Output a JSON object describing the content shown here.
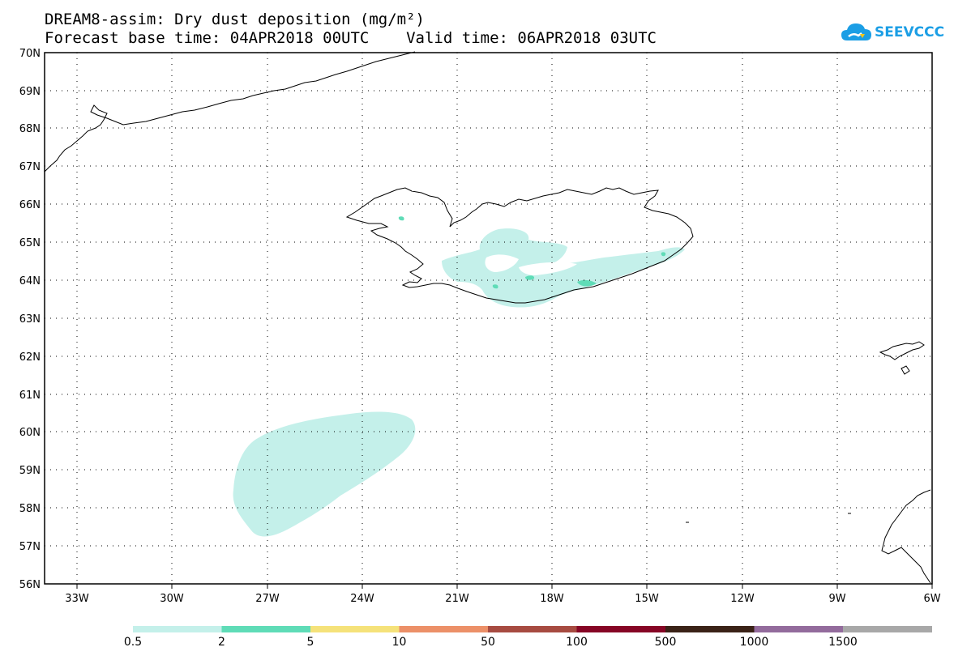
{
  "title": {
    "line1": "DREAM8-assim: Dry dust deposition (mg/m²)",
    "line2": "Forecast base time: 04APR2018 00UTC    Valid time: 06APR2018 03UTC"
  },
  "logo": {
    "text": "SEEVCCC",
    "icon": "cloud-icon",
    "color": "#1b9ee5"
  },
  "map": {
    "lon_range": [
      -34.5,
      -6
    ],
    "lat_range": [
      56,
      70
    ],
    "lat_labels": [
      "70N",
      "69N",
      "68N",
      "67N",
      "66N",
      "65N",
      "64N",
      "63N",
      "62N",
      "61N",
      "60N",
      "59N",
      "58N",
      "57N",
      "56N"
    ],
    "lon_labels": [
      "33W",
      "30W",
      "27W",
      "24W",
      "21W",
      "18W",
      "15W",
      "12W",
      "9W",
      "6W"
    ],
    "grid": "dotted"
  },
  "colorbar": {
    "colors": [
      "#c4f0ea",
      "#5fdcb7",
      "#f5e27a",
      "#ec9068",
      "#a74b41",
      "#860525",
      "#3a2217",
      "#936b9c",
      "#a8a8a8"
    ],
    "labels": [
      "0.5",
      "2",
      "5",
      "10",
      "50",
      "100",
      "500",
      "1000",
      "1500"
    ]
  }
}
